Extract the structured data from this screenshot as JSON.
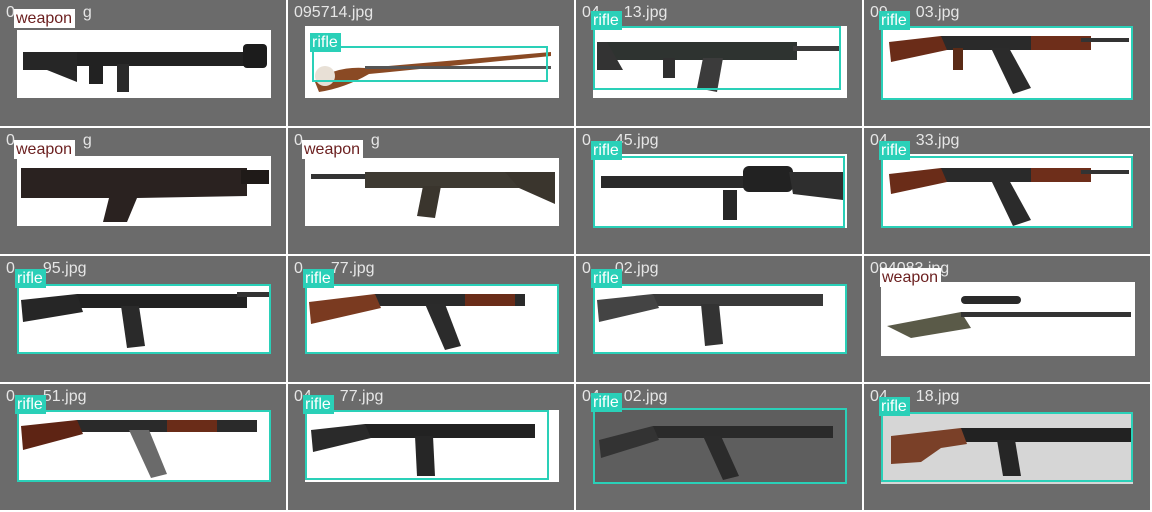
{
  "class_labels": {
    "rifle": "rifle",
    "weapon": "weapon"
  },
  "colors": {
    "background": "#6b6b6b",
    "rifle_box": "#2ad0b8",
    "weapon_label_text": "#6b1f1f",
    "filename_text": "#e6e6e6"
  },
  "tiles": [
    {
      "filename": "0",
      "filename_tail": "g",
      "label": "weapon"
    },
    {
      "filename": "095714.jpg",
      "label": "rifle"
    },
    {
      "filename": "04",
      "filename_tail": "13.jpg",
      "label": "rifle"
    },
    {
      "filename": "09",
      "filename_tail": "03.jpg",
      "label": "rifle"
    },
    {
      "filename": "0",
      "filename_tail": "g",
      "label": "weapon"
    },
    {
      "filename": "0",
      "filename_tail": "g",
      "label": "weapon"
    },
    {
      "filename": "0",
      "filename_tail": "45.jpg",
      "label": "rifle"
    },
    {
      "filename": "04",
      "filename_tail": "33.jpg",
      "label": "rifle"
    },
    {
      "filename": "0",
      "filename_tail": "95.jpg",
      "label": "rifle"
    },
    {
      "filename": "0",
      "filename_tail": "77.jpg",
      "label": "rifle"
    },
    {
      "filename": "0",
      "filename_tail": "02.jpg",
      "label": "rifle"
    },
    {
      "filename": "094083.jpg",
      "label": "weapon"
    },
    {
      "filename": "0",
      "filename_tail": "51.jpg",
      "label": "rifle"
    },
    {
      "filename": "04",
      "filename_tail": "77.jpg",
      "label": "rifle"
    },
    {
      "filename": "04",
      "filename_tail": "02.jpg",
      "label": "rifle"
    },
    {
      "filename": "04",
      "filename_tail": "18.jpg",
      "label": "rifle"
    }
  ]
}
